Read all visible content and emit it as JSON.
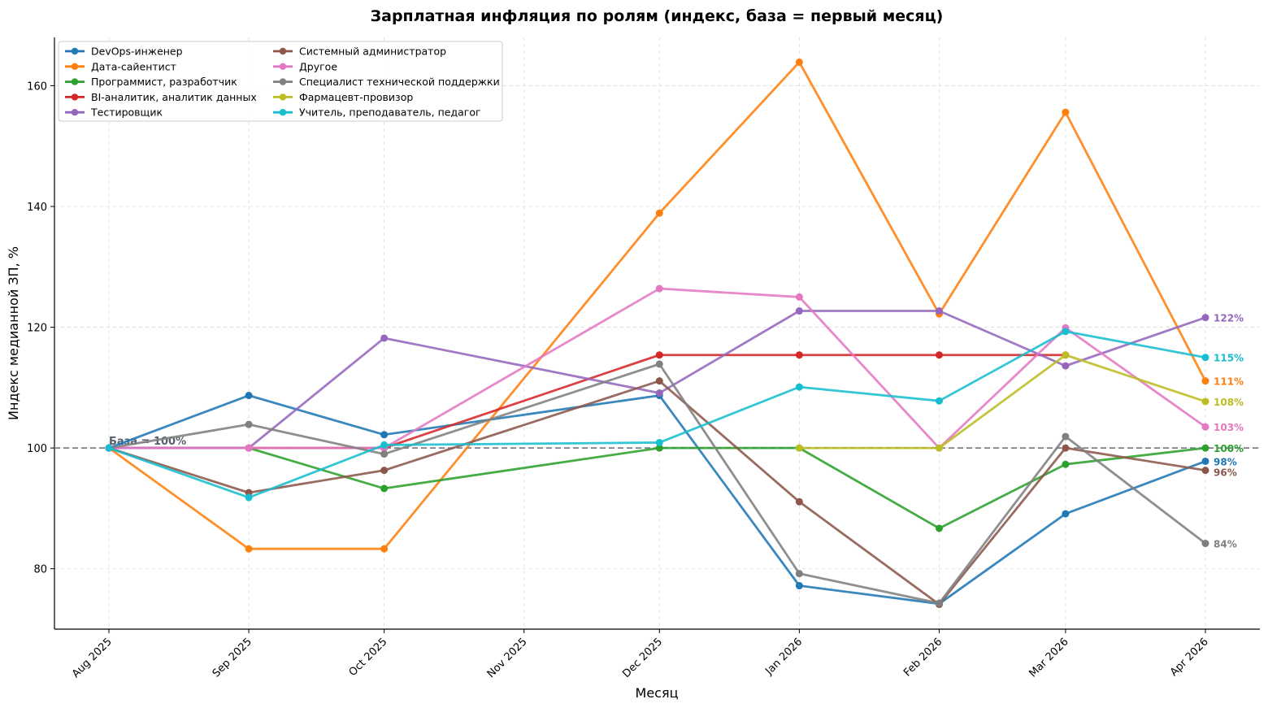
{
  "chart_data": {
    "type": "line",
    "title": "Зарплатная инфляция по ролям (индекс, база = первый месяц)",
    "xlabel": "Месяц",
    "ylabel": "Индекс медианной ЗП, %",
    "ylim": [
      70,
      168
    ],
    "yticks": [
      80,
      100,
      120,
      140,
      160
    ],
    "grid": true,
    "legend_position": "top-left",
    "baseline": {
      "value": 100,
      "label": "База = 100%"
    },
    "x": [
      "2025-08-01",
      "2025-09-01",
      "2025-10-01",
      "2025-11-01",
      "2025-12-01",
      "2026-01-01",
      "2026-02-01",
      "2026-03-01",
      "2026-04-01"
    ],
    "xtick_labels": [
      "Aug 2025",
      "Sep 2025",
      "Oct 2025",
      "Nov 2025",
      "Dec 2025",
      "Jan 2026",
      "Feb 2026",
      "Mar 2026",
      "Apr 2026"
    ],
    "series": [
      {
        "name": "DevOps-инженер",
        "color": "#1f77b4",
        "points": [
          [
            "2025-08-01",
            100
          ],
          [
            "2025-09-01",
            108.7
          ],
          [
            "2025-10-01",
            102.2
          ],
          [
            "2025-12-01",
            108.7
          ],
          [
            "2026-01-01",
            77.2
          ],
          [
            "2026-02-01",
            74.2
          ],
          [
            "2026-03-01",
            89.1
          ],
          [
            "2026-04-01",
            97.8
          ]
        ],
        "end_label": "98%"
      },
      {
        "name": "Дата-сайентист",
        "color": "#ff7f0e",
        "points": [
          [
            "2025-08-01",
            100
          ],
          [
            "2025-09-01",
            83.3
          ],
          [
            "2025-10-01",
            83.3
          ],
          [
            "2025-12-01",
            138.9
          ],
          [
            "2026-01-01",
            163.9
          ],
          [
            "2026-02-01",
            122.2
          ],
          [
            "2026-03-01",
            155.6
          ],
          [
            "2026-04-01",
            111.1
          ]
        ],
        "end_label": "111%"
      },
      {
        "name": "Программист, разработчик",
        "color": "#2ca02c",
        "points": [
          [
            "2025-08-01",
            100
          ],
          [
            "2025-09-01",
            100
          ],
          [
            "2025-10-01",
            93.3
          ],
          [
            "2025-12-01",
            100
          ],
          [
            "2026-01-01",
            100
          ],
          [
            "2026-02-01",
            86.7
          ],
          [
            "2026-03-01",
            97.3
          ],
          [
            "2026-04-01",
            100
          ]
        ],
        "end_label": "100%"
      },
      {
        "name": "BI-аналитик, аналитик данных",
        "color": "#d62728",
        "points": [
          [
            "2025-08-01",
            100
          ],
          [
            "2025-09-01",
            100
          ],
          [
            "2025-10-01",
            100
          ],
          [
            "2025-12-01",
            115.4
          ],
          [
            "2026-01-01",
            115.4
          ],
          [
            "2026-02-01",
            115.4
          ],
          [
            "2026-03-01",
            115.4
          ]
        ],
        "end_label": ""
      },
      {
        "name": "Тестировщик",
        "color": "#9467bd",
        "points": [
          [
            "2025-08-01",
            100
          ],
          [
            "2025-09-01",
            100
          ],
          [
            "2025-10-01",
            118.2
          ],
          [
            "2025-12-01",
            109.1
          ],
          [
            "2026-01-01",
            122.7
          ],
          [
            "2026-02-01",
            122.7
          ],
          [
            "2026-03-01",
            113.6
          ],
          [
            "2026-04-01",
            121.6
          ]
        ],
        "end_label": "122%"
      },
      {
        "name": "Системный администратор",
        "color": "#8c564b",
        "points": [
          [
            "2025-08-01",
            100
          ],
          [
            "2025-09-01",
            92.6
          ],
          [
            "2025-10-01",
            96.3
          ],
          [
            "2025-12-01",
            111.1
          ],
          [
            "2026-01-01",
            91.1
          ],
          [
            "2026-02-01",
            74.1
          ],
          [
            "2026-03-01",
            100
          ],
          [
            "2026-04-01",
            96.3
          ]
        ],
        "end_label": "96%"
      },
      {
        "name": "Другое",
        "color": "#e377c2",
        "points": [
          [
            "2025-08-01",
            100
          ],
          [
            "2025-09-01",
            100
          ],
          [
            "2025-10-01",
            100
          ],
          [
            "2025-12-01",
            126.4
          ],
          [
            "2026-01-01",
            125
          ],
          [
            "2026-02-01",
            100
          ],
          [
            "2026-03-01",
            119.9
          ],
          [
            "2026-04-01",
            103.5
          ]
        ],
        "end_label": "103%"
      },
      {
        "name": "Специалист технической поддержки",
        "color": "#7f7f7f",
        "points": [
          [
            "2025-08-01",
            100
          ],
          [
            "2025-09-01",
            103.9
          ],
          [
            "2025-10-01",
            99
          ],
          [
            "2025-12-01",
            113.9
          ],
          [
            "2026-01-01",
            79.2
          ],
          [
            "2026-02-01",
            74.3
          ],
          [
            "2026-03-01",
            101.9
          ],
          [
            "2026-04-01",
            84.2
          ]
        ],
        "end_label": "84%"
      },
      {
        "name": "Фармацевт-провизор",
        "color": "#bcbd22",
        "points": [
          [
            "2026-01-01",
            100
          ],
          [
            "2026-02-01",
            100
          ],
          [
            "2026-03-01",
            115.4
          ],
          [
            "2026-04-01",
            107.7
          ]
        ],
        "end_label": "108%"
      },
      {
        "name": "Учитель, преподаватель, педагог",
        "color": "#17becf",
        "points": [
          [
            "2025-08-01",
            100
          ],
          [
            "2025-09-01",
            91.8
          ],
          [
            "2025-10-01",
            100.5
          ],
          [
            "2025-12-01",
            100.9
          ],
          [
            "2026-01-01",
            110.1
          ],
          [
            "2026-02-01",
            107.8
          ],
          [
            "2026-03-01",
            119.3
          ],
          [
            "2026-04-01",
            115
          ]
        ],
        "end_label": "115%"
      }
    ]
  }
}
